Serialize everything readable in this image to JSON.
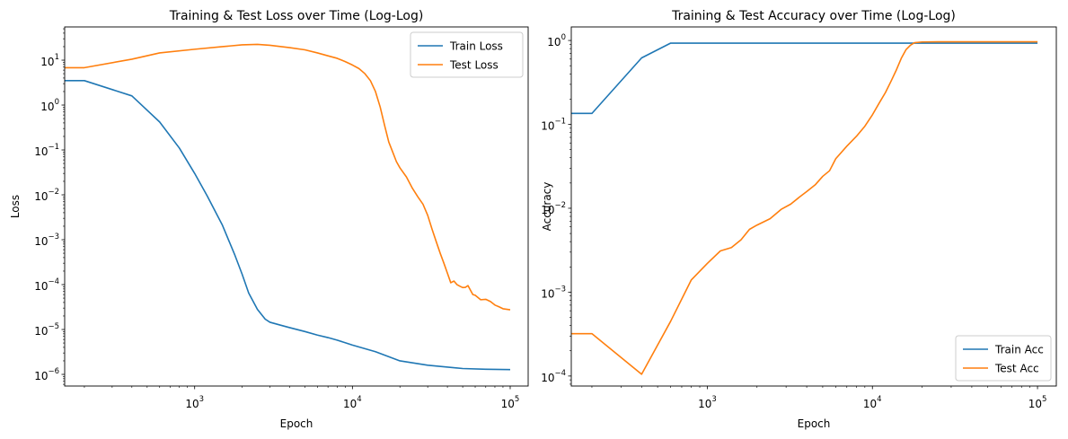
{
  "chart_data": [
    {
      "type": "line",
      "title": "Training & Test Loss over Time (Log-Log)",
      "xlabel": "Epoch",
      "ylabel": "Loss",
      "xscale": "log",
      "yscale": "log",
      "xlim": [
        150,
        130000
      ],
      "ylim": [
        5.5e-07,
        55
      ],
      "xtick_values": [
        1000,
        10000,
        100000
      ],
      "xtick_labels": [
        [
          "10",
          "3"
        ],
        [
          "10",
          "4"
        ],
        [
          "10",
          "5"
        ]
      ],
      "ytick_values": [
        1e-06,
        1e-05,
        0.0001,
        0.001,
        0.01,
        0.1,
        1,
        10
      ],
      "ytick_labels": [
        [
          "10",
          "−6"
        ],
        [
          "10",
          "−5"
        ],
        [
          "10",
          "−4"
        ],
        [
          "10",
          "−3"
        ],
        [
          "10",
          "−2"
        ],
        [
          "10",
          "−1"
        ],
        [
          "10",
          "0"
        ],
        [
          "10",
          "1"
        ]
      ],
      "grid": false,
      "legend_position": "top-right",
      "series": [
        {
          "name": "Train Loss",
          "color": "#1f77b4",
          "x": [
            150,
            200,
            400,
            600,
            800,
            1000,
            1200,
            1500,
            1800,
            2000,
            2200,
            2500,
            2800,
            3000,
            3500,
            4000,
            5000,
            6000,
            7000,
            8000,
            10000,
            14000,
            20000,
            30000,
            50000,
            70000,
            100000
          ],
          "y": [
            3.5,
            3.5,
            1.6,
            0.42,
            0.11,
            0.03,
            0.0095,
            0.0021,
            0.00045,
            0.00017,
            6.5e-05,
            2.8e-05,
            1.7e-05,
            1.45e-05,
            1.25e-05,
            1.1e-05,
            9e-06,
            7.5e-06,
            6.6e-06,
            5.8e-06,
            4.5e-06,
            3.2e-06,
            2e-06,
            1.6e-06,
            1.35e-06,
            1.3e-06,
            1.28e-06
          ]
        },
        {
          "name": "Test Loss",
          "color": "#ff7f0e",
          "x": [
            150,
            200,
            400,
            600,
            1000,
            1500,
            2000,
            2500,
            3000,
            4000,
            5000,
            6000,
            7000,
            8000,
            9000,
            10000,
            11000,
            12000,
            13000,
            14000,
            15000,
            16000,
            17000,
            18000,
            19000,
            20000,
            22000,
            24000,
            26000,
            28000,
            30000,
            32000,
            34000,
            36000,
            38000,
            40000,
            42000,
            44000,
            46000,
            48000,
            50000,
            52000,
            54000,
            56000,
            58000,
            60000,
            65000,
            70000,
            75000,
            80000,
            85000,
            90000,
            100000
          ],
          "y": [
            6.8,
            6.8,
            10.5,
            14.5,
            17.5,
            20.0,
            22.0,
            22.5,
            21.5,
            19.0,
            17.0,
            14.5,
            12.5,
            11.0,
            9.3,
            7.8,
            6.5,
            5.0,
            3.5,
            2.0,
            0.9,
            0.35,
            0.15,
            0.09,
            0.055,
            0.04,
            0.025,
            0.014,
            0.009,
            0.0062,
            0.0035,
            0.0017,
            0.0009,
            0.0005,
            0.0003,
            0.00018,
            0.00011,
            0.00012,
            0.0001,
            9.2e-05,
            8.6e-05,
            8.7e-05,
            9.5e-05,
            7.5e-05,
            6e-05,
            5.8e-05,
            4.6e-05,
            4.7e-05,
            4.2e-05,
            3.5e-05,
            3.2e-05,
            2.9e-05,
            2.75e-05
          ]
        }
      ]
    },
    {
      "type": "line",
      "title": "Training & Test Accuracy over Time (Log-Log)",
      "xlabel": "Epoch",
      "ylabel": "Accuracy",
      "xscale": "log",
      "yscale": "log",
      "xlim": [
        150,
        130000
      ],
      "ylim": [
        7.6e-05,
        1.45
      ],
      "xtick_values": [
        1000,
        10000,
        100000
      ],
      "xtick_labels": [
        [
          "10",
          "3"
        ],
        [
          "10",
          "4"
        ],
        [
          "10",
          "5"
        ]
      ],
      "ytick_values": [
        0.0001,
        0.001,
        0.01,
        0.1,
        1
      ],
      "ytick_labels": [
        [
          "10",
          "−4"
        ],
        [
          "10",
          "−3"
        ],
        [
          "10",
          "−2"
        ],
        [
          "10",
          "−1"
        ],
        [
          "10",
          "0"
        ]
      ],
      "grid": false,
      "legend_position": "bottom-right",
      "series": [
        {
          "name": "Train Acc",
          "color": "#1f77b4",
          "x": [
            150,
            200,
            400,
            600,
            1000,
            5000,
            10000,
            50000,
            100000
          ],
          "y": [
            0.135,
            0.135,
            0.62,
            0.93,
            0.93,
            0.93,
            0.93,
            0.93,
            0.93
          ]
        },
        {
          "name": "Test Acc",
          "color": "#ff7f0e",
          "x": [
            150,
            200,
            400,
            600,
            800,
            1000,
            1200,
            1400,
            1600,
            1800,
            2000,
            2400,
            2800,
            3200,
            3600,
            4000,
            4500,
            5000,
            5500,
            6000,
            7000,
            8000,
            9000,
            10000,
            11000,
            12000,
            13000,
            14000,
            15000,
            16000,
            17000,
            18000,
            20000,
            25000,
            30000,
            50000,
            100000
          ],
          "y": [
            0.00032,
            0.00032,
            0.000105,
            0.00045,
            0.0014,
            0.0022,
            0.0031,
            0.0034,
            0.0042,
            0.0056,
            0.0063,
            0.0075,
            0.0097,
            0.0112,
            0.0135,
            0.0158,
            0.019,
            0.024,
            0.028,
            0.039,
            0.055,
            0.072,
            0.095,
            0.13,
            0.18,
            0.24,
            0.33,
            0.45,
            0.62,
            0.78,
            0.88,
            0.94,
            0.96,
            0.965,
            0.965,
            0.965,
            0.965
          ]
        }
      ]
    }
  ]
}
